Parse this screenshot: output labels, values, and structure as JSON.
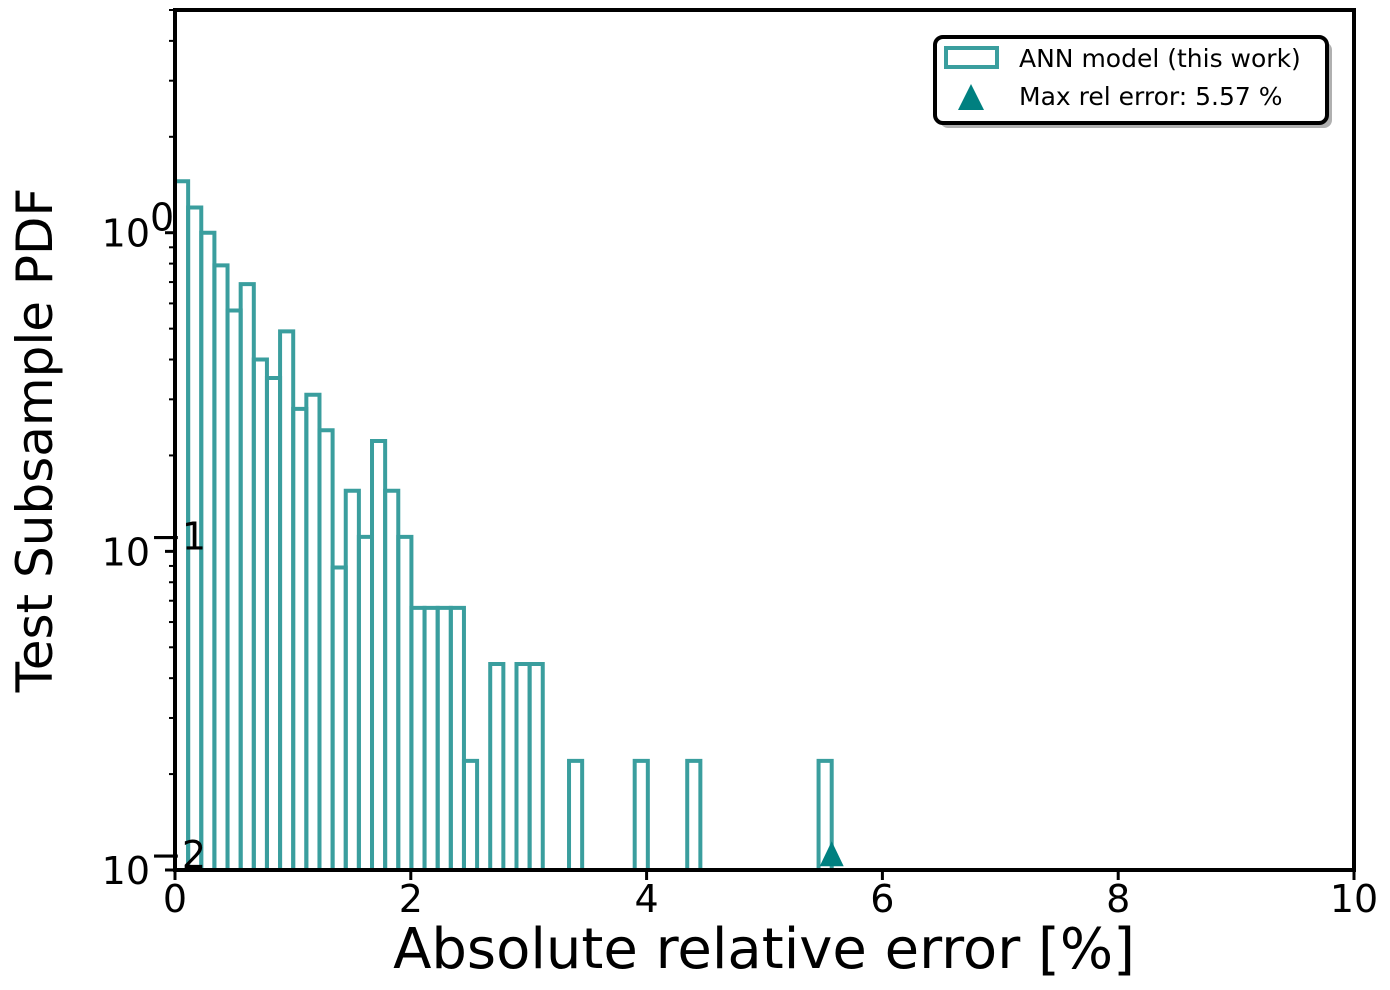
{
  "chart_data": {
    "type": "histogram",
    "xlabel": "Absolute relative error [%]",
    "ylabel": "Test Subsample PDF",
    "xlim": [
      0,
      10
    ],
    "ylim": [
      0.01,
      5
    ],
    "yscale": "log",
    "grid": false,
    "legend_position": "top-right",
    "x_ticks": [
      0,
      2,
      4,
      6,
      8,
      10
    ],
    "x_tick_labels": [
      "0",
      "2",
      "4",
      "6",
      "8",
      "10"
    ],
    "y_ticks": [
      {
        "value": 1,
        "base": "10",
        "exponent": "0"
      },
      {
        "value": 0.1,
        "base": "10",
        "exponent": "−1"
      },
      {
        "value": 0.01,
        "base": "10",
        "exponent": "−2"
      }
    ],
    "bin_width": 0.1114,
    "series": [
      {
        "name": "ANN model (this work)",
        "style": "step-outline",
        "color": "#3a9e9e",
        "bin_values": [
          1.45,
          1.2,
          1.0,
          0.79,
          0.57,
          0.69,
          0.4,
          0.35,
          0.49,
          0.28,
          0.31,
          0.24,
          0.089,
          0.155,
          0.111,
          0.222,
          0.155,
          0.111,
          0.0665,
          0.0665,
          0.0665,
          0.0665,
          0.022,
          0.0,
          0.0443,
          0.0,
          0.0443,
          0.0443,
          0.0,
          0.0,
          0.022,
          0.0,
          0.0,
          0.0,
          0.0,
          0.022,
          0.0,
          0.0,
          0.0,
          0.022,
          0.0,
          0.0,
          0.0,
          0.0,
          0.0,
          0.0,
          0.0,
          0.0,
          0.0,
          0.022,
          0.0
        ]
      },
      {
        "name": "Max rel error: 5.57 %",
        "style": "marker-triangle",
        "color": "#008080",
        "x": 5.57,
        "y": 0.0105
      }
    ]
  }
}
